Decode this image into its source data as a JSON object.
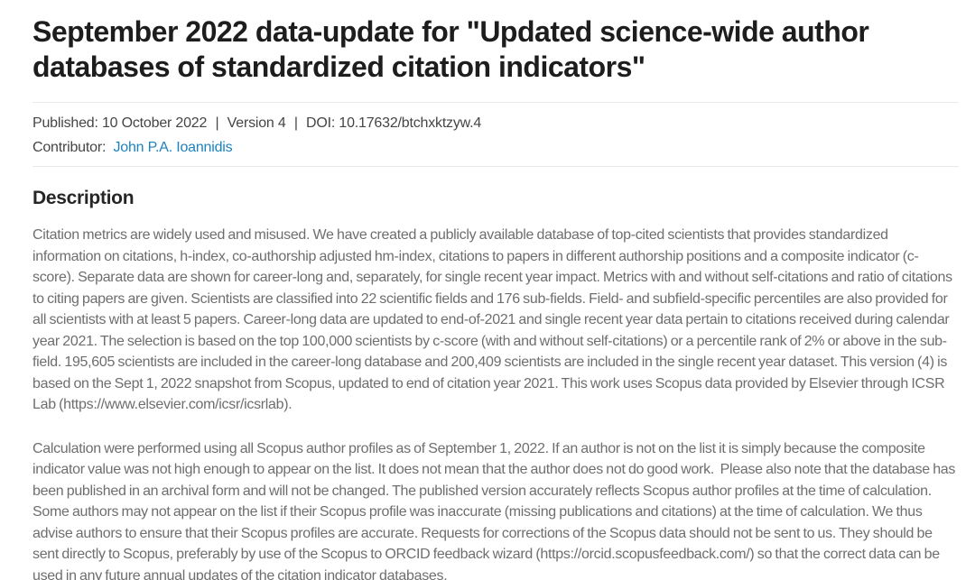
{
  "header": {
    "title": "September 2022 data-update for \"Updated science-wide author databases of standardized citation indicators\""
  },
  "meta": {
    "published_label": "Published:",
    "published_value": "10 October 2022",
    "separator": "|",
    "version": "Version 4",
    "doi_label": "DOI:",
    "doi_value": "10.17632/btchxktzyw.4",
    "contributor_label": "Contributor:",
    "contributor_name": "John P.A. Ioannidis"
  },
  "description": {
    "heading": "Description",
    "paragraphs": [
      "Citation metrics are widely used and misused. We have created a publicly available database of top-cited scientists that provides standardized information on citations, h-index, co-authorship adjusted hm-index, citations to papers in different authorship positions and a composite indicator (c-score). Separate data are shown for career-long and, separately, for single recent year impact. Metrics with and without self-citations and ratio of citations to citing papers are given. Scientists are classified into 22 scientific fields and 176 sub-fields. Field- and subfield-specific percentiles are also provided for all scientists with at least 5 papers. Career-long data are updated to end-of-2021 and single recent year data pertain to citations received during calendar year 2021. The selection is based on the top 100,000 scientists by c-score (with and without self-citations) or a percentile rank of 2% or above in the sub-field. 195,605 scientists are included in the career-long database and 200,409 scientists are included in the single recent year dataset. This version (4) is based on the Sept 1, 2022 snapshot from Scopus, updated to end of citation year 2021. This work uses Scopus data provided by Elsevier through ICSR Lab (https://www.elsevier.com/icsr/icsrlab).",
      "Calculation were performed using all Scopus author profiles as of September 1, 2022. If an author is not on the list it is simply because the composite indicator value was not high enough to appear on the list. It does not mean that the author does not do good work.  Please also note that the database has been published in an archival form and will not be changed. The published version accurately reflects Scopus author profiles at the time of calculation.  Some authors may not appear on the list if their Scopus profile was inaccurate (missing publications and citations) at the time of calculation. We thus advise authors to ensure that their Scopus profiles are accurate. Requests for corrections of the Scopus data should not be sent to us. They should be sent directly to Scopus, preferably by use of the Scopus to ORCID feedback wizard (https://orcid.scopusfeedback.com/) so that the correct data can be used in any future annual updates of the citation indicator databases."
    ]
  },
  "colors": {
    "link": "#1d82bd",
    "title_text": "#1d1d1d",
    "meta_text": "#454545",
    "body_text": "#6e6e6e",
    "divider": "#e9e9e9"
  }
}
